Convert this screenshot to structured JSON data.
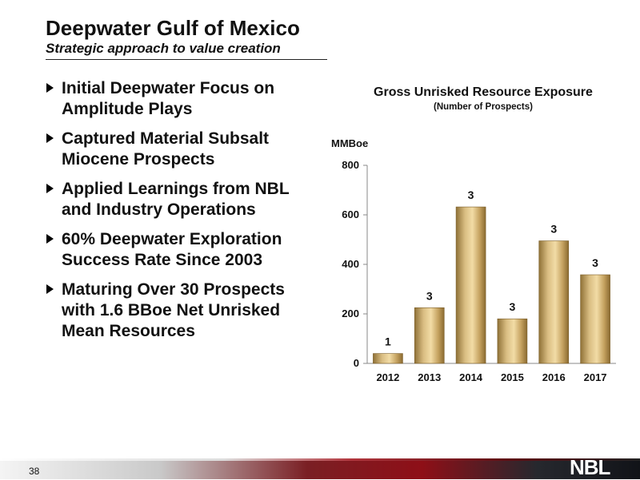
{
  "slide": {
    "title": "Deepwater Gulf of Mexico",
    "subtitle": "Strategic approach to value creation",
    "page_number": "38",
    "logo_text": "NBL"
  },
  "bullets": [
    {
      "lines": [
        "Initial Deepwater Focus on",
        "Amplitude Plays"
      ]
    },
    {
      "lines": [
        "Captured Material Subsalt",
        "Miocene Prospects"
      ]
    },
    {
      "lines": [
        "Applied Learnings from NBL",
        "and Industry Operations"
      ]
    },
    {
      "lines": [
        "60% Deepwater Exploration",
        "Success Rate Since 2003"
      ]
    },
    {
      "lines": [
        "Maturing Over 30 Prospects",
        "with 1.6 BBoe Net Unrisked",
        "Mean Resources"
      ]
    }
  ],
  "chart_data": {
    "type": "bar",
    "title": "Gross Unrisked Resource Exposure",
    "subtitle": "(Number of Prospects)",
    "ylabel": "MMBoe",
    "xlabel": "",
    "categories": [
      "2012",
      "2013",
      "2014",
      "2015",
      "2016",
      "2017"
    ],
    "values": [
      40,
      225,
      632,
      180,
      495,
      358
    ],
    "data_labels": [
      "1",
      "3",
      "3",
      "3",
      "3",
      "3"
    ],
    "ylim": [
      0,
      800
    ],
    "yticks": [
      0,
      200,
      400,
      600,
      800
    ],
    "grid": false,
    "bar_color": "#c9a96a",
    "legend": "none"
  }
}
